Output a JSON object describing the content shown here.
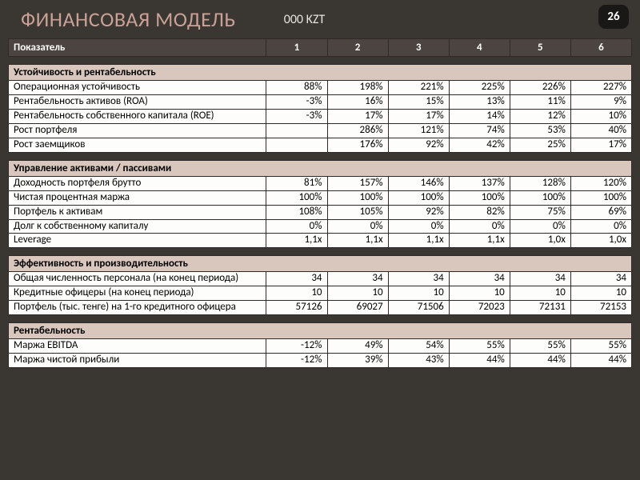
{
  "page": {
    "title": "ФИНАНСОВАЯ МОДЕЛЬ",
    "currency": "000 KZT",
    "number": "26"
  },
  "colors": {
    "page_bg": "#3a3632",
    "title_color": "#c9a196",
    "header_bg": "#4b4440",
    "section_bg": "#d9c6bc",
    "row_bg": "#fdfdfb",
    "border": "#2d2a27"
  },
  "header": {
    "label": "Показатель",
    "cols": [
      "1",
      "2",
      "3",
      "4",
      "5",
      "6"
    ]
  },
  "sections": [
    {
      "title": "Устойчивость и рентабельность",
      "rows": [
        {
          "label": "Операционная устойчивость",
          "vals": [
            "88%",
            "198%",
            "221%",
            "225%",
            "226%",
            "227%"
          ]
        },
        {
          "label": "Рентабельность активов (ROA)",
          "vals": [
            "-3%",
            "16%",
            "15%",
            "13%",
            "11%",
            "9%"
          ]
        },
        {
          "label": "Рентабельность собственного капитала (ROE)",
          "vals": [
            "-3%",
            "17%",
            "17%",
            "14%",
            "12%",
            "10%"
          ]
        },
        {
          "label": "Рост портфеля",
          "vals": [
            "",
            "286%",
            "121%",
            "74%",
            "53%",
            "40%"
          ]
        },
        {
          "label": "Рост заемщиков",
          "vals": [
            "",
            "176%",
            "92%",
            "42%",
            "25%",
            "17%"
          ]
        }
      ]
    },
    {
      "title": "Управление активами / пассивами",
      "rows": [
        {
          "label": "Доходность портфеля брутто",
          "vals": [
            "81%",
            "157%",
            "146%",
            "137%",
            "128%",
            "120%"
          ]
        },
        {
          "label": "Чистая процентная маржа",
          "vals": [
            "100%",
            "100%",
            "100%",
            "100%",
            "100%",
            "100%"
          ]
        },
        {
          "label": "Портфель к активам",
          "vals": [
            "108%",
            "105%",
            "92%",
            "82%",
            "75%",
            "69%"
          ]
        },
        {
          "label": "Долг к собственному капиталу",
          "vals": [
            "0%",
            "0%",
            "0%",
            "0%",
            "0%",
            "0%"
          ]
        },
        {
          "label": "Leverage",
          "vals": [
            "1,1x",
            "1,1x",
            "1,1x",
            "1,1x",
            "1,0x",
            "1,0x"
          ]
        }
      ]
    },
    {
      "title": "Эффективность и производительность",
      "rows": [
        {
          "label": "Общая численность персонала (на конец периода)",
          "vals": [
            "34",
            "34",
            "34",
            "34",
            "34",
            "34"
          ]
        },
        {
          "label": "Кредитные офицеры (на конец периода)",
          "vals": [
            "10",
            "10",
            "10",
            "10",
            "10",
            "10"
          ]
        },
        {
          "label": "Портфель (тыс. тенге) на 1-го кредитного офицера",
          "vals": [
            "57126",
            "69027",
            "71506",
            "72023",
            "72131",
            "72153"
          ]
        }
      ]
    },
    {
      "title": "Рентабельность",
      "rows": [
        {
          "label": "Маржа EBITDA",
          "vals": [
            "-12%",
            "49%",
            "54%",
            "55%",
            "55%",
            "55%"
          ]
        },
        {
          "label": "Маржа чистой прибыли",
          "vals": [
            "-12%",
            "39%",
            "43%",
            "44%",
            "44%",
            "44%"
          ]
        }
      ]
    }
  ]
}
